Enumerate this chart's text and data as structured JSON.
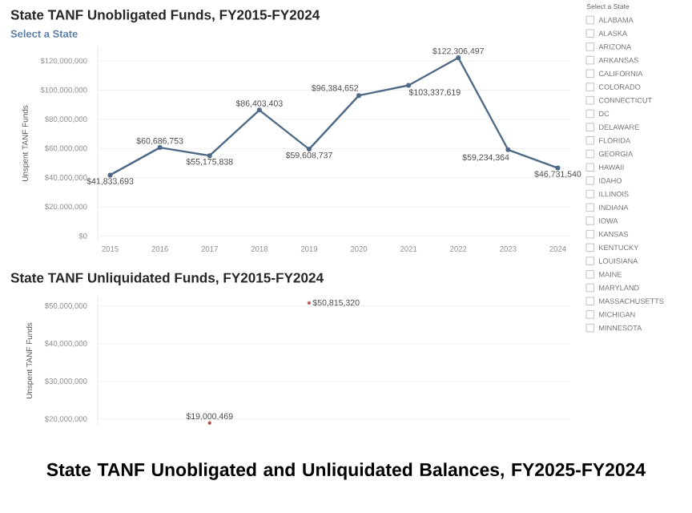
{
  "chart_data": [
    {
      "type": "line",
      "title": "State TANF Unobligated Funds, FY2015-FY2024",
      "subtitle": "Select a State",
      "ylabel": "Unspent TANF Funds",
      "categories": [
        "2015",
        "2016",
        "2017",
        "2018",
        "2019",
        "2020",
        "2021",
        "2022",
        "2023",
        "2024"
      ],
      "values": [
        41833693,
        60686753,
        55175838,
        86403403,
        59608737,
        96384652,
        103337619,
        122306497,
        59234364,
        46731540
      ],
      "value_labels": [
        "$41,833,693",
        "$60,686,753",
        "$55,175,838",
        "$86,403,403",
        "$59,608,737",
        "$96,384,652",
        "$103,337,619",
        "$122,306,497",
        "$59,234,364",
        "$46,731,540"
      ],
      "color": "#4e6a86",
      "ylim": [
        -3000000,
        130000000
      ],
      "yticks": [
        {
          "value": 0,
          "label": "$0"
        },
        {
          "value": 20000000,
          "label": "$20,000,000"
        },
        {
          "value": 40000000,
          "label": "$40,000,000"
        },
        {
          "value": 60000000,
          "label": "$60,000,000"
        },
        {
          "value": 80000000,
          "label": "$80,000,000"
        },
        {
          "value": 100000000,
          "label": "$100,000,000"
        },
        {
          "value": 120000000,
          "label": "$120,000,000"
        }
      ],
      "grid": "y",
      "marker": "circle"
    },
    {
      "type": "scatter",
      "title": "State TANF Unliquidated Funds, FY2015-FY2024",
      "ylabel": "Unspent TANF Funds",
      "categories": [
        "2015",
        "2016",
        "2017",
        "2018",
        "2019",
        "2020",
        "2021",
        "2022",
        "2023",
        "2024"
      ],
      "values": [
        null,
        null,
        19000469,
        null,
        50815320,
        null,
        null,
        null,
        null,
        null
      ],
      "value_labels": [
        null,
        null,
        "$19,000,469",
        null,
        "$50,815,320",
        null,
        null,
        null,
        null,
        null
      ],
      "color": "#b5524f",
      "ylim": [
        18500000,
        52500000
      ],
      "yticks": [
        {
          "value": 20000000,
          "label": "$20,000,000"
        },
        {
          "value": 30000000,
          "label": "$30,000,000"
        },
        {
          "value": 40000000,
          "label": "$40,000,000"
        },
        {
          "value": 50000000,
          "label": "$50,000,000"
        }
      ],
      "grid": "y",
      "marker": "circle",
      "tick_labels": "y"
    },
    {
      "type": "other",
      "title": "Select a State",
      "annotations": [
        "ALABAMA",
        "ALASKA",
        "ARIZONA",
        "ARKANSAS",
        "CALIFORNIA",
        "COLORADO",
        "CONNECTICUT",
        "DC",
        "DELAWARE",
        "FLORIDA",
        "GEORGIA",
        "HAWAII",
        "IDAHO",
        "ILLINOIS",
        "INDIANA",
        "IOWA",
        "KANSAS",
        "KENTUCKY",
        "LOUISIANA",
        "MAINE",
        "MARYLAND",
        "MASSACHUSETTS",
        "MICHIGAN",
        "MINNESOTA"
      ]
    },
    {
      "type": "other",
      "title": "State TANF Unobligated and Unliquidated Balances, FY2025-FY2024"
    }
  ]
}
